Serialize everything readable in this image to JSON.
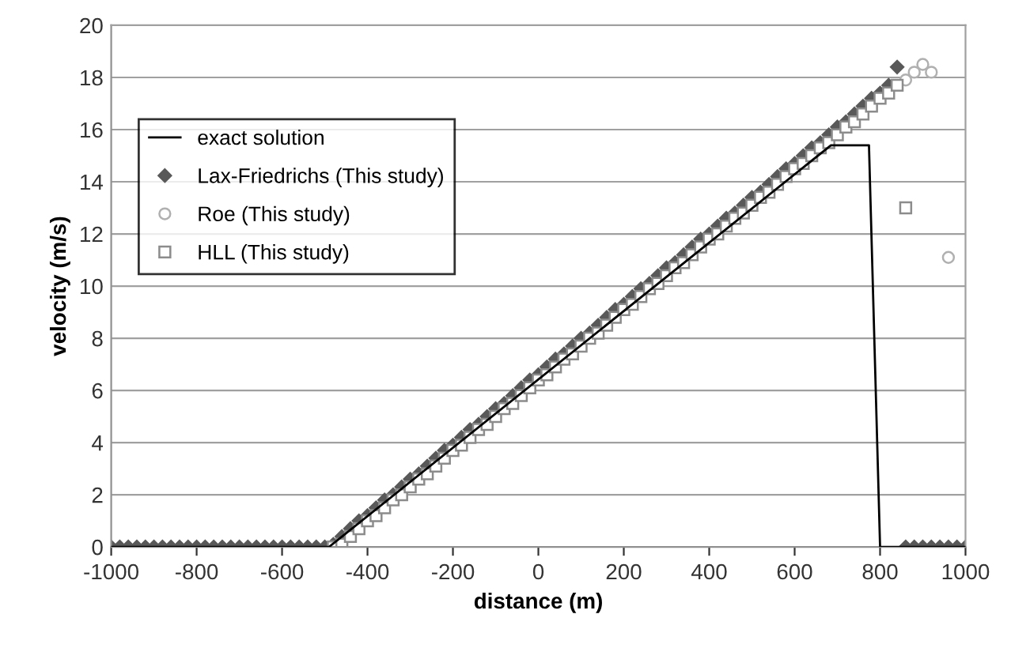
{
  "chart_data": {
    "type": "scatter",
    "xlabel": "distance (m)",
    "ylabel": "velocity (m/s)",
    "x": [
      -1000,
      -980,
      -960,
      -940,
      -920,
      -900,
      -880,
      -860,
      -840,
      -820,
      -800,
      -780,
      -760,
      -740,
      -720,
      -700,
      -680,
      -660,
      -640,
      -620,
      -600,
      -580,
      -560,
      -540,
      -520,
      -500,
      -480,
      -460,
      -440,
      -420,
      -400,
      -380,
      -360,
      -340,
      -320,
      -300,
      -280,
      -260,
      -240,
      -220,
      -200,
      -180,
      -160,
      -140,
      -120,
      -100,
      -80,
      -60,
      -40,
      -20,
      0,
      20,
      40,
      60,
      80,
      100,
      120,
      140,
      160,
      180,
      200,
      220,
      240,
      260,
      280,
      300,
      320,
      340,
      360,
      380,
      400,
      420,
      440,
      460,
      480,
      500,
      520,
      540,
      560,
      580,
      600,
      620,
      640,
      660,
      680,
      700,
      720,
      740,
      760,
      780,
      800,
      820,
      840,
      860,
      880,
      900,
      920,
      940,
      960,
      980,
      1000
    ],
    "series": [
      {
        "name": "exact solution",
        "type": "line",
        "color": "#000000",
        "marker": "none",
        "x": [
          -1000,
          -490,
          685,
          774,
          800,
          1000
        ],
        "values": [
          0,
          0,
          15.4,
          15.4,
          0,
          0
        ]
      },
      {
        "name": "Lax-Friedrichs (This study)",
        "color": "#595959",
        "marker": "diamond",
        "values": [
          0,
          0,
          0,
          0,
          0,
          0,
          0,
          0,
          0,
          0,
          0,
          0,
          0,
          0,
          0,
          0,
          0,
          0,
          0,
          0,
          0,
          0,
          0,
          0,
          0,
          0,
          0.1,
          0.4,
          0.7,
          1.0,
          1.2,
          1.5,
          1.8,
          2.0,
          2.3,
          2.6,
          2.8,
          3.1,
          3.4,
          3.7,
          3.9,
          4.2,
          4.5,
          4.7,
          5.0,
          5.3,
          5.5,
          5.8,
          6.1,
          6.4,
          6.6,
          6.9,
          7.2,
          7.4,
          7.7,
          8.0,
          8.2,
          8.5,
          8.8,
          9.1,
          9.3,
          9.6,
          9.9,
          10.1,
          10.4,
          10.7,
          10.9,
          11.2,
          11.5,
          11.8,
          12.0,
          12.3,
          12.6,
          12.8,
          13.1,
          13.4,
          13.6,
          13.9,
          14.2,
          14.5,
          14.7,
          15.0,
          15.3,
          15.5,
          15.8,
          16.1,
          16.3,
          16.6,
          16.9,
          17.2,
          17.4,
          17.7,
          18.4,
          0,
          0,
          0,
          0,
          0,
          0,
          0,
          0
        ]
      },
      {
        "name": "Roe (This study)",
        "color": "#b0b0b0",
        "marker": "circle",
        "x": [
          860,
          880,
          900,
          920,
          960
        ],
        "values": [
          17.9,
          18.2,
          18.5,
          18.2,
          11.1
        ]
      },
      {
        "name": "HLL (This study)",
        "color": "#8c8c8c",
        "marker": "square",
        "values": [
          null,
          null,
          null,
          null,
          null,
          null,
          null,
          null,
          null,
          null,
          null,
          null,
          null,
          null,
          null,
          null,
          null,
          null,
          null,
          null,
          null,
          null,
          null,
          null,
          null,
          null,
          0,
          0.1,
          0.4,
          0.7,
          1.0,
          1.2,
          1.5,
          1.8,
          2.0,
          2.3,
          2.6,
          2.8,
          3.1,
          3.4,
          3.7,
          3.9,
          4.2,
          4.5,
          4.7,
          5.0,
          5.3,
          5.5,
          5.8,
          6.1,
          6.4,
          6.6,
          6.9,
          7.2,
          7.4,
          7.7,
          8.0,
          8.2,
          8.5,
          8.8,
          9.1,
          9.3,
          9.6,
          9.9,
          10.1,
          10.4,
          10.7,
          10.9,
          11.2,
          11.5,
          11.8,
          12.0,
          12.3,
          12.6,
          12.8,
          13.1,
          13.4,
          13.6,
          13.9,
          14.2,
          14.5,
          14.7,
          15.0,
          15.3,
          15.5,
          15.8,
          16.1,
          16.3,
          16.6,
          16.9,
          17.2,
          17.4,
          17.7,
          13.0,
          null,
          null,
          null,
          null,
          null,
          null,
          null
        ]
      }
    ],
    "xlim": [
      -1000,
      1000
    ],
    "xticks": [
      -1000,
      -800,
      -600,
      -400,
      -200,
      0,
      200,
      400,
      600,
      800,
      1000
    ],
    "ylim": [
      0,
      20
    ],
    "yticks": [
      0,
      2,
      4,
      6,
      8,
      10,
      12,
      14,
      16,
      18,
      20
    ],
    "grid": "y",
    "legend": "top left"
  }
}
